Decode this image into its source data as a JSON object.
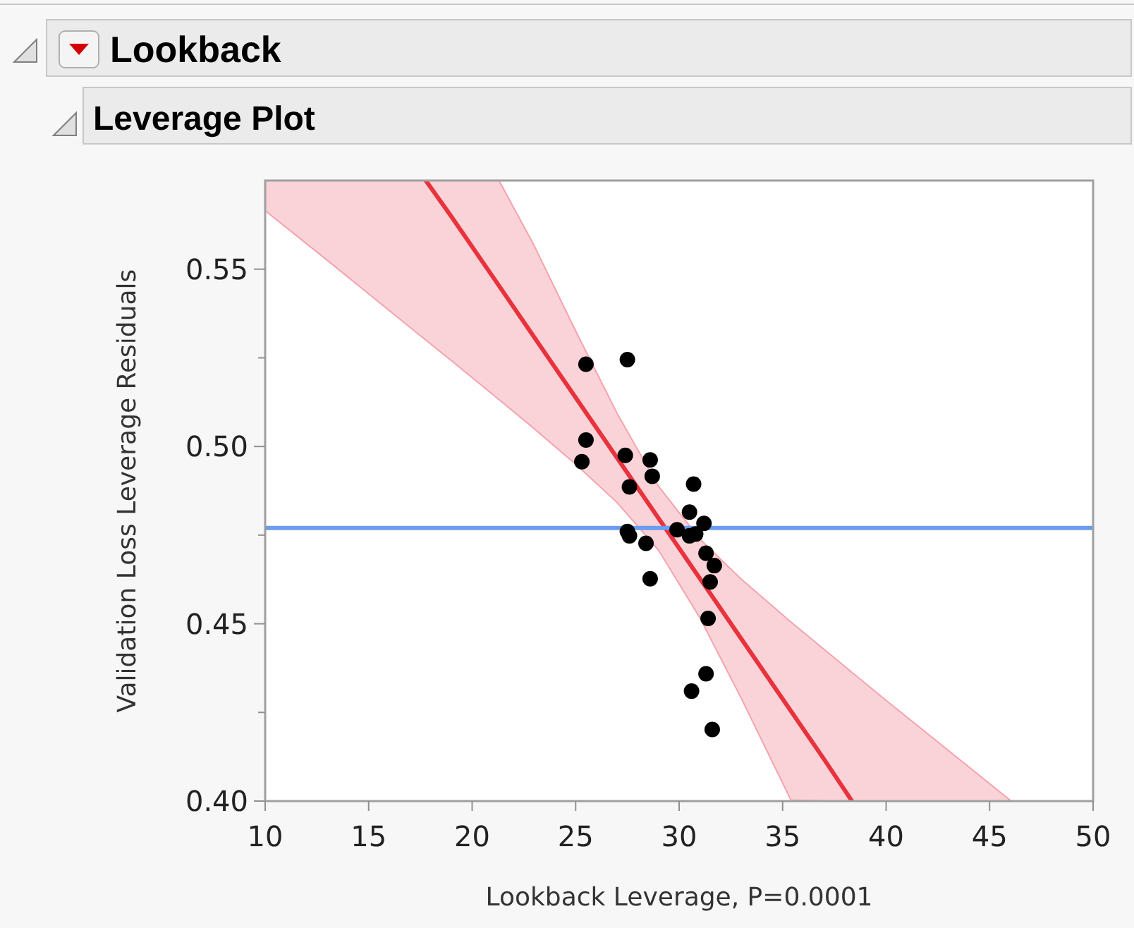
{
  "chart_data": {
    "type": "scatter",
    "title": "Lookback",
    "subtitle": "Leverage Plot",
    "xlabel": "Lookback Leverage, P=0.0001",
    "ylabel": "Validation Loss Leverage Residuals",
    "xlim": [
      10,
      50
    ],
    "xticks": [
      10,
      15,
      20,
      25,
      30,
      35,
      40,
      45,
      50
    ],
    "ylim": [
      0.4,
      0.575
    ],
    "yticks": [
      {
        "value": 0.4,
        "label": "0.40"
      },
      {
        "value": 0.425,
        "label": null
      },
      {
        "value": 0.45,
        "label": "0.45"
      },
      {
        "value": 0.475,
        "label": null
      },
      {
        "value": 0.5,
        "label": "0.50"
      },
      {
        "value": 0.525,
        "label": null
      },
      {
        "value": 0.55,
        "label": "0.55"
      }
    ],
    "grid": false,
    "marker": "circle",
    "ref_lines": [
      {
        "axis": "y",
        "value": 0.477,
        "color": "#6b9cf0"
      }
    ],
    "series": [
      {
        "type": "line",
        "marker": "none",
        "color": "#e8323c",
        "x": [
          10,
          13,
          16,
          17.76,
          19,
          21.3,
          23,
          25,
          27,
          29,
          31,
          33,
          35.4,
          37,
          38.35,
          40,
          43,
          46
        ],
        "values": [
          null,
          null,
          null,
          0.575,
          0.5648,
          0.5453,
          0.5308,
          0.5138,
          0.4968,
          0.4798,
          0.4628,
          0.4458,
          0.4254,
          0.4118,
          0.4,
          null,
          null,
          null
        ],
        "upper": [
          0.575,
          0.575,
          0.575,
          0.575,
          0.575,
          0.575,
          0.5566,
          0.5326,
          0.5094,
          0.4888,
          0.4739,
          0.4626,
          0.4505,
          0.4428,
          0.4363,
          0.4284,
          0.4143,
          0.4002
        ],
        "lower": [
          0.5665,
          0.5525,
          0.5383,
          0.53,
          0.5242,
          0.5132,
          0.505,
          0.495,
          0.4842,
          0.4708,
          0.4517,
          0.429,
          0.4003,
          0.4,
          0.4,
          0.4,
          0.4,
          0.4
        ]
      },
      {
        "color": "#000000",
        "x": [
          25.5,
          27.5,
          25.5,
          25.3,
          27.4,
          28.6,
          28.7,
          27.6,
          30.7,
          30.5,
          31.2,
          29.9,
          27.5,
          27.6,
          30.5,
          30.8,
          28.4,
          31.3,
          31.7,
          31.5,
          28.6,
          31.4,
          31.3,
          30.6,
          31.6
        ],
        "values": [
          0.5232,
          0.5245,
          0.5018,
          0.4957,
          0.4975,
          0.4962,
          0.4916,
          0.4886,
          0.4894,
          0.4815,
          0.4783,
          0.4765,
          0.476,
          0.4748,
          0.4748,
          0.4753,
          0.4727,
          0.4699,
          0.4664,
          0.4618,
          0.4627,
          0.4515,
          0.4359,
          0.431,
          0.4202
        ]
      }
    ]
  }
}
